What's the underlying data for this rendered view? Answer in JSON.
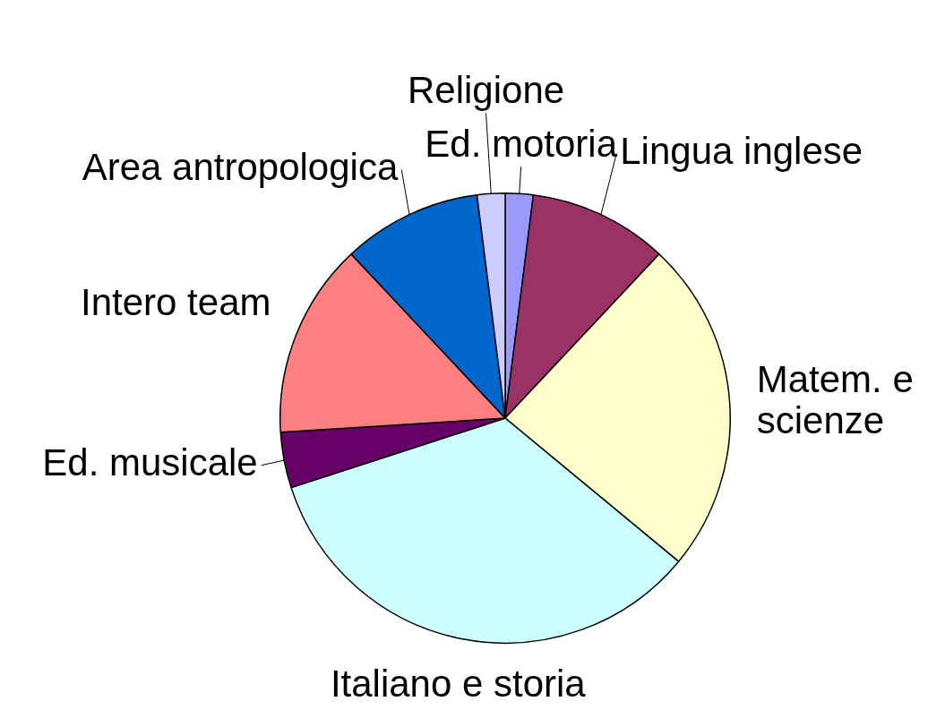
{
  "chart_data": {
    "type": "pie",
    "categories": [
      "Ed. motoria",
      "Lingua inglese",
      "Matem. e scienze",
      "Italiano e storia",
      "Ed. musicale",
      "Intero team",
      "Area antropologica",
      "Religione"
    ],
    "values": [
      2,
      10,
      24,
      34,
      4,
      14,
      10,
      2
    ],
    "colors": [
      "#9999ff",
      "#993366",
      "#ffffcc",
      "#ccffff",
      "#660066",
      "#ff8080",
      "#0066cc",
      "#ccccff"
    ]
  }
}
